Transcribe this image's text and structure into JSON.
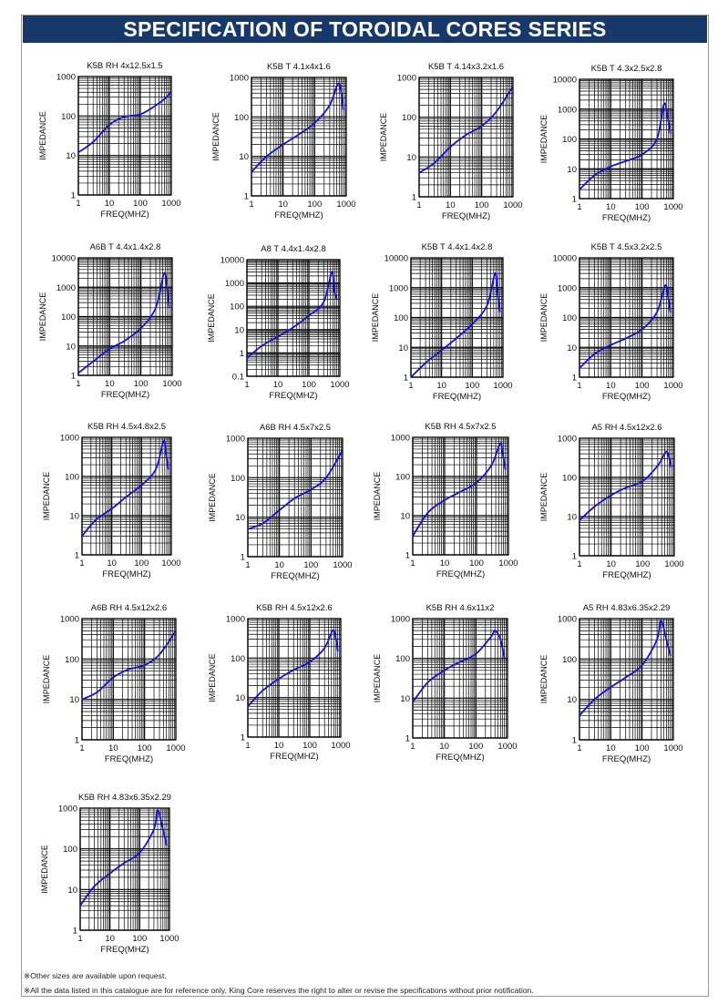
{
  "page": {
    "title": "SPECIFICATION OF TOROIDAL CORES SERIES",
    "notes": [
      "※Other sizes are available upon request.",
      "※All the data listed in this catalogue are for reference only, King Core reserves the right to alter or revise the specifications without prior notification."
    ]
  },
  "colors": {
    "banner": "#17386b",
    "curve": "#1010e0",
    "grid": "#000000"
  },
  "chart_data": [
    {
      "type": "line",
      "title": "K5B RH 4x12.5x1.5",
      "xlabel": "FREQ(MHZ)",
      "ylabel": "IMPEDANCE",
      "xscale": "log",
      "yscale": "log",
      "xlim": [
        1,
        1000
      ],
      "ylim": [
        1,
        1000
      ],
      "xticks": [
        "1",
        "10",
        "100",
        "1000"
      ],
      "yticks": [
        "1",
        "10",
        "100",
        "1000"
      ],
      "x": [
        1,
        3,
        10,
        30,
        100,
        300,
        700,
        1000
      ],
      "y": [
        12,
        22,
        60,
        95,
        110,
        180,
        300,
        420
      ]
    },
    {
      "type": "line",
      "title": "K5B T 4.1x4x1.6",
      "xlabel": "FREQ(MHZ)",
      "ylabel": "IMPEDANCE",
      "xscale": "log",
      "yscale": "log",
      "xlim": [
        1,
        1000
      ],
      "ylim": [
        1,
        1000
      ],
      "xticks": [
        "1",
        "10",
        "100",
        "1000"
      ],
      "yticks": [
        "1",
        "10",
        "100",
        "1000"
      ],
      "x": [
        1,
        3,
        10,
        30,
        100,
        300,
        550,
        700,
        800
      ],
      "y": [
        4,
        10,
        20,
        35,
        70,
        200,
        700,
        400,
        150
      ]
    },
    {
      "type": "line",
      "title": "K5B T 4.14x3.2x1.6",
      "xlabel": "FREQ(MHZ)",
      "ylabel": "IMPEDANCE",
      "xscale": "log",
      "yscale": "log",
      "xlim": [
        1,
        1000
      ],
      "ylim": [
        1,
        1000
      ],
      "xticks": [
        "1",
        "10",
        "100",
        "1000"
      ],
      "yticks": [
        "1",
        "10",
        "100",
        "1000"
      ],
      "x": [
        1,
        3,
        10,
        30,
        100,
        300,
        1000
      ],
      "y": [
        4,
        7,
        18,
        35,
        60,
        140,
        600
      ]
    },
    {
      "type": "line",
      "title": "K5B T 4.3x2.5x2.8",
      "xlabel": "FREQ(MHZ)",
      "ylabel": "IMPEDANCE",
      "xscale": "log",
      "yscale": "log",
      "xlim": [
        1,
        1000
      ],
      "ylim": [
        1,
        10000
      ],
      "xticks": [
        "1",
        "10",
        "100",
        "1000"
      ],
      "yticks": [
        "1",
        "10",
        "100",
        "1000",
        "10000"
      ],
      "x": [
        1,
        3,
        10,
        30,
        100,
        300,
        500,
        650,
        800
      ],
      "y": [
        2,
        6,
        12,
        18,
        30,
        100,
        1500,
        600,
        150
      ]
    },
    {
      "type": "line",
      "title": "A6B T 4.4x1.4x2.8",
      "xlabel": "FREQ(MHZ)",
      "ylabel": "IMPEDANCE",
      "xscale": "log",
      "yscale": "log",
      "xlim": [
        1,
        1000
      ],
      "ylim": [
        1,
        10000
      ],
      "xticks": [
        "1",
        "10",
        "100",
        "1000"
      ],
      "yticks": [
        "1",
        "10",
        "100",
        "1000",
        "10000"
      ],
      "x": [
        1,
        3,
        10,
        30,
        100,
        300,
        550,
        700,
        800
      ],
      "y": [
        1.2,
        3,
        8,
        15,
        40,
        200,
        3000,
        800,
        200
      ]
    },
    {
      "type": "line",
      "title": "A8 T 4.4x1.4x2.8",
      "xlabel": "FREQ(MHZ)",
      "ylabel": "IMPEDANCE",
      "xscale": "log",
      "yscale": "log",
      "xlim": [
        1,
        1000
      ],
      "ylim": [
        0.1,
        10000
      ],
      "xticks": [
        "1",
        "10",
        "100",
        "1000"
      ],
      "yticks": [
        "0.1",
        "1",
        "10",
        "100",
        "1000",
        "10000"
      ],
      "x": [
        1,
        3,
        10,
        30,
        100,
        300,
        550,
        650,
        800
      ],
      "y": [
        0.6,
        2,
        5,
        12,
        40,
        150,
        3000,
        500,
        200
      ]
    },
    {
      "type": "line",
      "title": "K5B T 4.4x1.4x2.8",
      "xlabel": "FREQ(MHZ)",
      "ylabel": "IMPEDANCE",
      "xscale": "log",
      "yscale": "log",
      "xlim": [
        1,
        1000
      ],
      "ylim": [
        1,
        10000
      ],
      "xticks": [
        "1",
        "10",
        "100",
        "1000"
      ],
      "yticks": [
        "1",
        "10",
        "100",
        "1000",
        "10000"
      ],
      "x": [
        1,
        3,
        10,
        30,
        100,
        300,
        550,
        650,
        800
      ],
      "y": [
        1,
        3,
        8,
        20,
        60,
        250,
        3000,
        800,
        150
      ]
    },
    {
      "type": "line",
      "title": "K5B T 4.5x3.2x2.5",
      "xlabel": "FREQ(MHZ)",
      "ylabel": "IMPEDANCE",
      "xscale": "log",
      "yscale": "log",
      "xlim": [
        1,
        1000
      ],
      "ylim": [
        1,
        10000
      ],
      "xticks": [
        "1",
        "10",
        "100",
        "1000"
      ],
      "yticks": [
        "1",
        "10",
        "100",
        "1000",
        "10000"
      ],
      "x": [
        1,
        3,
        10,
        30,
        100,
        300,
        550,
        700,
        800
      ],
      "y": [
        2,
        6,
        12,
        20,
        40,
        150,
        1200,
        400,
        150
      ]
    },
    {
      "type": "line",
      "title": "K5B RH 4.5x4.8x2.5",
      "xlabel": "FREQ(MHZ)",
      "ylabel": "IMPEDANCE",
      "xscale": "log",
      "yscale": "log",
      "xlim": [
        1,
        1000
      ],
      "ylim": [
        1,
        1000
      ],
      "xticks": [
        "1",
        "10",
        "100",
        "1000"
      ],
      "yticks": [
        "1",
        "10",
        "100",
        "1000"
      ],
      "x": [
        1,
        3,
        10,
        30,
        100,
        300,
        550,
        650,
        800
      ],
      "y": [
        3,
        8,
        15,
        30,
        60,
        150,
        800,
        400,
        150
      ]
    },
    {
      "type": "line",
      "title": "A6B RH 4.5x7x2.5",
      "xlabel": "FREQ(MHZ)",
      "ylabel": "IMPEDANCE",
      "xscale": "log",
      "yscale": "log",
      "xlim": [
        1,
        1000
      ],
      "ylim": [
        1,
        1000
      ],
      "xticks": [
        "1",
        "10",
        "100",
        "1000"
      ],
      "yticks": [
        "1",
        "10",
        "100",
        "1000"
      ],
      "x": [
        1,
        3,
        10,
        30,
        100,
        300,
        1000
      ],
      "y": [
        5,
        7,
        15,
        30,
        50,
        100,
        500
      ]
    },
    {
      "type": "line",
      "title": "K5B RH 4.5x7x2.5",
      "xlabel": "FREQ(MHZ)",
      "ylabel": "IMPEDANCE",
      "xscale": "log",
      "yscale": "log",
      "xlim": [
        1,
        1000
      ],
      "ylim": [
        1,
        1000
      ],
      "xticks": [
        "1",
        "10",
        "100",
        "1000"
      ],
      "yticks": [
        "1",
        "10",
        "100",
        "1000"
      ],
      "x": [
        1,
        3,
        10,
        30,
        100,
        300,
        550,
        650,
        800
      ],
      "y": [
        3,
        12,
        25,
        40,
        70,
        200,
        700,
        400,
        150
      ]
    },
    {
      "type": "line",
      "title": "A5 RH 4.5x12x2.6",
      "xlabel": "FREQ(MHZ)",
      "ylabel": "IMPEDANCE",
      "xscale": "log",
      "yscale": "log",
      "xlim": [
        1,
        1000
      ],
      "ylim": [
        1,
        1000
      ],
      "xticks": [
        "1",
        "10",
        "100",
        "1000"
      ],
      "yticks": [
        "1",
        "10",
        "100",
        "1000"
      ],
      "x": [
        1,
        3,
        10,
        30,
        100,
        300,
        550,
        700,
        800
      ],
      "y": [
        8,
        18,
        35,
        55,
        80,
        200,
        450,
        300,
        180
      ]
    },
    {
      "type": "line",
      "title": "A6B RH 4.5x12x2.6",
      "xlabel": "FREQ(MHZ)",
      "ylabel": "IMPEDANCE",
      "xscale": "log",
      "yscale": "log",
      "xlim": [
        1,
        1000
      ],
      "ylim": [
        1,
        1000
      ],
      "xticks": [
        "1",
        "10",
        "100",
        "1000"
      ],
      "yticks": [
        "1",
        "10",
        "100",
        "1000"
      ],
      "x": [
        1,
        3,
        10,
        30,
        100,
        300,
        1000
      ],
      "y": [
        10,
        15,
        35,
        55,
        70,
        130,
        500
      ]
    },
    {
      "type": "line",
      "title": "K5B RH 4.5x12x2.6",
      "xlabel": "FREQ(MHZ)",
      "ylabel": "IMPEDANCE",
      "xscale": "log",
      "yscale": "log",
      "xlim": [
        1,
        1000
      ],
      "ylim": [
        1,
        1000
      ],
      "xticks": [
        "1",
        "10",
        "100",
        "1000"
      ],
      "yticks": [
        "1",
        "10",
        "100",
        "1000"
      ],
      "x": [
        1,
        3,
        10,
        30,
        100,
        300,
        550,
        700,
        800
      ],
      "y": [
        6,
        15,
        30,
        50,
        80,
        180,
        500,
        300,
        150
      ]
    },
    {
      "type": "line",
      "title": "K5B RH 4.6x11x2",
      "xlabel": "FREQ(MHZ)",
      "ylabel": "IMPEDANCE",
      "xscale": "log",
      "yscale": "log",
      "xlim": [
        1,
        1000
      ],
      "ylim": [
        1,
        1000
      ],
      "xticks": [
        "1",
        "10",
        "100",
        "1000"
      ],
      "yticks": [
        "1",
        "10",
        "100",
        "1000"
      ],
      "x": [
        1,
        3,
        10,
        30,
        100,
        300,
        400,
        600,
        800
      ],
      "y": [
        8,
        25,
        50,
        80,
        130,
        350,
        500,
        300,
        100
      ]
    },
    {
      "type": "line",
      "title": "A5 RH 4.83x6.35x2.29",
      "xlabel": "FREQ(MHZ)",
      "ylabel": "IMPEDANCE",
      "xscale": "log",
      "yscale": "log",
      "xlim": [
        1,
        1000
      ],
      "ylim": [
        1,
        1000
      ],
      "xticks": [
        "1",
        "10",
        "100",
        "1000"
      ],
      "yticks": [
        "1",
        "10",
        "100",
        "1000"
      ],
      "x": [
        1,
        3,
        10,
        30,
        100,
        300,
        400,
        600,
        800
      ],
      "y": [
        4,
        10,
        20,
        35,
        70,
        300,
        900,
        300,
        120
      ]
    },
    {
      "type": "line",
      "title": "K5B RH 4.83x6.35x2.29",
      "xlabel": "FREQ(MHZ)",
      "ylabel": "IMPEDANCE",
      "xscale": "log",
      "yscale": "log",
      "xlim": [
        1,
        1000
      ],
      "ylim": [
        1,
        1000
      ],
      "xticks": [
        "1",
        "10",
        "100",
        "1000"
      ],
      "yticks": [
        "1",
        "10",
        "100",
        "1000"
      ],
      "x": [
        1,
        3,
        10,
        30,
        100,
        300,
        400,
        600,
        800
      ],
      "y": [
        4,
        12,
        25,
        45,
        80,
        300,
        900,
        300,
        120
      ]
    }
  ]
}
